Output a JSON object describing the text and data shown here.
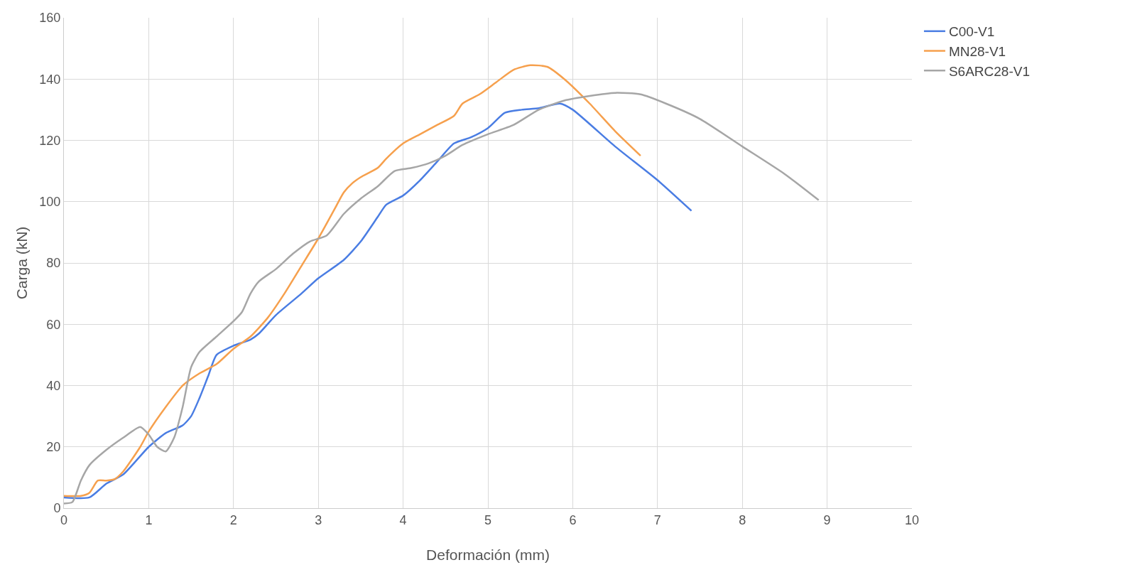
{
  "chart_data": {
    "type": "line",
    "xlabel": "Deformación (mm)",
    "ylabel": "Carga (kN)",
    "xlim": [
      0,
      10
    ],
    "xticks": [
      0,
      1,
      2,
      3,
      4,
      5,
      6,
      7,
      8,
      9,
      10
    ],
    "ylim": [
      0,
      160
    ],
    "yticks": [
      0,
      20,
      40,
      60,
      80,
      100,
      120,
      140,
      160
    ],
    "grid": true,
    "legend": "top right",
    "marker": "none",
    "line_style": "solid",
    "series": [
      {
        "name": "C00-V1",
        "color": "#4a7de3",
        "x": [
          0,
          0.3,
          0.5,
          0.7,
          1.0,
          1.2,
          1.4,
          1.5,
          1.6,
          1.7,
          1.8,
          2.0,
          2.2,
          2.3,
          2.5,
          2.8,
          3.0,
          3.3,
          3.5,
          3.7,
          3.8,
          4.0,
          4.2,
          4.4,
          4.6,
          4.8,
          5.0,
          5.2,
          5.4,
          5.6,
          5.85,
          6.0,
          6.5,
          7.0,
          7.4
        ],
        "values": [
          3.5,
          3.5,
          8,
          11,
          20,
          24.5,
          27,
          30,
          36,
          43,
          50,
          53,
          55,
          57,
          63,
          70,
          75,
          81,
          87,
          95,
          99,
          102,
          107,
          113,
          119,
          121,
          124,
          129,
          130,
          130.5,
          132,
          130,
          118,
          107,
          97
        ]
      },
      {
        "name": "MN28-V1",
        "color": "#f6a04d",
        "x": [
          0,
          0.2,
          0.3,
          0.4,
          0.5,
          0.6,
          0.7,
          0.9,
          1.0,
          1.2,
          1.4,
          1.6,
          1.8,
          2.0,
          2.2,
          2.4,
          2.6,
          2.8,
          3.0,
          3.2,
          3.3,
          3.4,
          3.5,
          3.7,
          3.8,
          4.0,
          4.2,
          4.4,
          4.6,
          4.7,
          4.9,
          5.1,
          5.3,
          5.5,
          5.7,
          5.9,
          6.2,
          6.5,
          6.8
        ],
        "values": [
          4,
          4,
          5,
          9,
          9,
          9.5,
          12,
          20,
          25,
          33,
          40,
          44,
          47,
          52,
          56,
          62,
          70,
          79,
          88,
          98,
          103,
          106,
          108,
          111,
          114,
          119,
          122,
          125,
          128,
          132,
          135,
          139,
          143,
          144.5,
          144,
          140,
          132,
          123,
          115
        ]
      },
      {
        "name": "S6ARC28-V1",
        "color": "#a6a6a6",
        "x": [
          0,
          0.1,
          0.2,
          0.3,
          0.5,
          0.7,
          0.9,
          1.0,
          1.1,
          1.2,
          1.3,
          1.4,
          1.5,
          1.6,
          1.8,
          2.0,
          2.1,
          2.2,
          2.3,
          2.5,
          2.7,
          2.9,
          3.1,
          3.3,
          3.5,
          3.7,
          3.9,
          4.1,
          4.3,
          4.5,
          4.7,
          5.0,
          5.3,
          5.6,
          5.9,
          6.2,
          6.5,
          6.8,
          7.1,
          7.5,
          8.0,
          8.5,
          8.9
        ],
        "values": [
          1.5,
          2,
          9,
          14,
          19,
          23,
          26.5,
          24,
          20,
          18.5,
          23,
          33,
          46,
          51,
          56,
          61,
          64,
          70,
          74,
          78,
          83,
          87,
          89,
          96,
          101,
          105,
          110,
          111,
          112.5,
          115,
          118.5,
          122,
          125,
          130,
          133,
          134.5,
          135.5,
          135,
          132,
          127,
          118,
          109,
          100.5
        ]
      }
    ]
  }
}
